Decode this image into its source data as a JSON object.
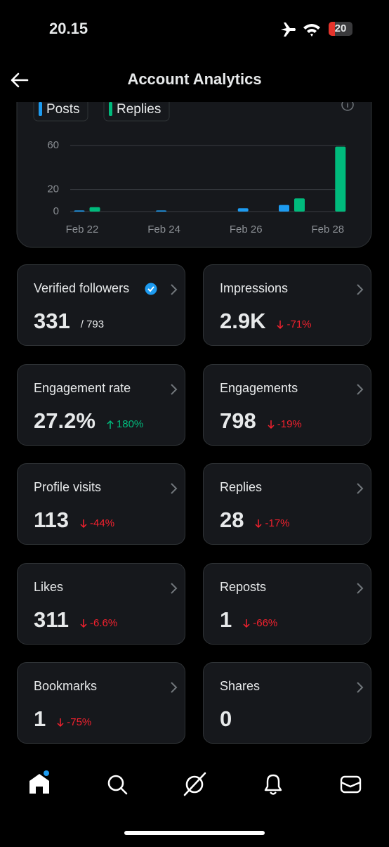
{
  "status_bar": {
    "time": "20.15",
    "battery": "20"
  },
  "header": {
    "title": "Account Analytics"
  },
  "chart_data": {
    "type": "bar",
    "categories": [
      "Feb 22",
      null,
      "Feb 24",
      null,
      "Feb 26",
      null,
      "Feb 28"
    ],
    "series": [
      {
        "name": "Posts",
        "color": "#1d9bf0",
        "values": [
          1,
          0,
          1,
          0,
          3,
          6,
          0
        ]
      },
      {
        "name": "Replies",
        "color": "#00ba7c",
        "values": [
          4,
          0,
          0,
          0,
          0,
          12,
          59
        ]
      }
    ],
    "ylim": [
      0,
      60
    ],
    "yticks": [
      0,
      20,
      60
    ],
    "grid": true
  },
  "metrics": [
    {
      "label": "Verified followers",
      "value": "331",
      "detail": "/ 793"
    },
    {
      "label": "Impressions",
      "value": "2.9K",
      "detail": "-71%"
    },
    {
      "label": "Engagement rate",
      "value": "27.2%",
      "detail": "180%"
    },
    {
      "label": "Engagements",
      "value": "798",
      "detail": "-19%"
    },
    {
      "label": "Profile visits",
      "value": "113",
      "detail": "-44%"
    },
    {
      "label": "Replies",
      "value": "28",
      "detail": "-17%"
    },
    {
      "label": "Likes",
      "value": "311",
      "detail": "-6.6%"
    },
    {
      "label": "Reposts",
      "value": "1",
      "detail": "-66%"
    },
    {
      "label": "Bookmarks",
      "value": "1",
      "detail": "-75%"
    },
    {
      "label": "Shares",
      "value": "0"
    }
  ]
}
